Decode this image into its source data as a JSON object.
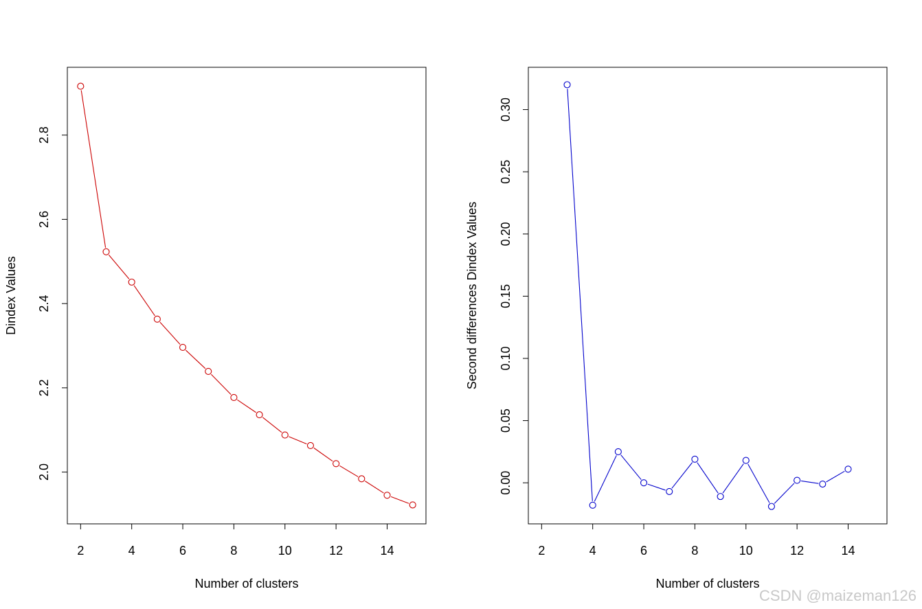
{
  "chart_data": [
    {
      "type": "line",
      "color": "#cc0000",
      "x": [
        2,
        3,
        4,
        5,
        6,
        7,
        8,
        9,
        10,
        11,
        12,
        13,
        14,
        15
      ],
      "y": [
        2.916,
        2.523,
        2.451,
        2.363,
        2.296,
        2.239,
        2.177,
        2.136,
        2.088,
        2.063,
        2.02,
        1.984,
        1.945,
        1.922
      ],
      "xlim": [
        1.48,
        15.52
      ],
      "ylim": [
        1.877,
        2.961
      ],
      "xticks": [
        2,
        4,
        6,
        8,
        10,
        12,
        14
      ],
      "yticks": [
        2.0,
        2.2,
        2.4,
        2.6,
        2.8
      ],
      "xtick_labels": [
        "2",
        "4",
        "6",
        "8",
        "10",
        "12",
        "14"
      ],
      "ytick_labels": [
        "2.0",
        "2.2",
        "2.4",
        "2.6",
        "2.8"
      ],
      "xlabel": "Number of clusters",
      "ylabel": "Dindex Values",
      "grid": false
    },
    {
      "type": "line",
      "color": "#0000cc",
      "x": [
        3,
        4,
        5,
        6,
        7,
        8,
        9,
        10,
        11,
        12,
        13,
        14
      ],
      "y": [
        0.32,
        -0.018,
        0.025,
        0.0,
        -0.007,
        0.019,
        -0.011,
        0.018,
        -0.019,
        0.002,
        -0.001,
        0.011
      ],
      "xlim": [
        1.48,
        15.52
      ],
      "ylim": [
        -0.033,
        0.334
      ],
      "xticks": [
        2,
        4,
        6,
        8,
        10,
        12,
        14
      ],
      "yticks": [
        0.0,
        0.05,
        0.1,
        0.15,
        0.2,
        0.25,
        0.3
      ],
      "xtick_labels": [
        "2",
        "4",
        "6",
        "8",
        "10",
        "12",
        "14"
      ],
      "ytick_labels": [
        "0.00",
        "0.05",
        "0.10",
        "0.15",
        "0.20",
        "0.25",
        "0.30"
      ],
      "xlabel": "Number of clusters",
      "ylabel": "Second differences Dindex Values",
      "grid": false
    }
  ],
  "watermark": "CSDN @maizeman126"
}
